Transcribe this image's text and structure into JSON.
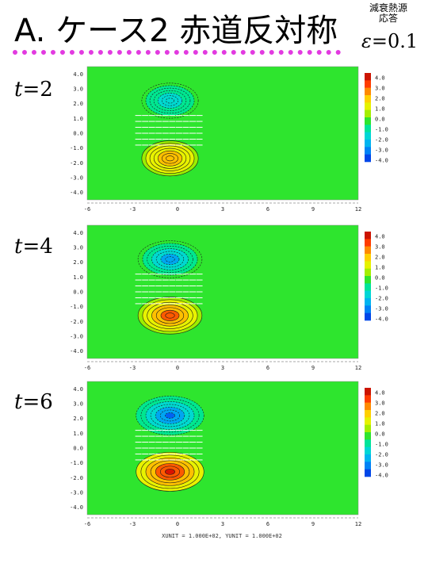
{
  "title": "A. ケース2 赤道反対称",
  "note_line1": "減衰熱源",
  "note_line2": "応答",
  "epsilon_symbol": "ε",
  "epsilon_eq": "=",
  "epsilon_value": "0.1",
  "footer": "XUNIT = 1.000E+02, YUNIT = 1.000E+02",
  "colors": {
    "background_field": "#2ee52e",
    "accent_line": "#e23ae0"
  },
  "chart_data": [
    {
      "type": "heatmap",
      "time_label_var": "t",
      "time_label_eq": "=",
      "time_label_value": "2",
      "xlim": [
        -6,
        12
      ],
      "ylim": [
        -4.5,
        4.5
      ],
      "x_ticks": [
        "-6",
        "-3",
        "0",
        "3",
        "6",
        "9",
        "12"
      ],
      "y_ticks": [
        "4.0",
        "3.0",
        "2.0",
        "1.0",
        "0.0",
        "-1.0",
        "-2.0",
        "-3.0",
        "-4.0"
      ],
      "colorbar_labels": [
        "4.0",
        "3.0",
        "2.0",
        "1.0",
        "0.0",
        "-1.0",
        "-2.0",
        "-3.0",
        "-4.0"
      ],
      "features": [
        {
          "x": -0.5,
          "y": 2.2,
          "sx": 1.5,
          "sy": 0.95,
          "amplitude": -2.6
        },
        {
          "x": -0.5,
          "y": -1.7,
          "sx": 1.5,
          "sy": 0.95,
          "amplitude": 2.6
        }
      ]
    },
    {
      "type": "heatmap",
      "time_label_var": "t",
      "time_label_eq": "=",
      "time_label_value": "4",
      "xlim": [
        -6,
        12
      ],
      "ylim": [
        -4.5,
        4.5
      ],
      "x_ticks": [
        "-6",
        "-3",
        "0",
        "3",
        "6",
        "9",
        "12"
      ],
      "y_ticks": [
        "4.0",
        "3.0",
        "2.0",
        "1.0",
        "0.0",
        "-1.0",
        "-2.0",
        "-3.0",
        "-4.0"
      ],
      "colorbar_labels": [
        "4.0",
        "3.0",
        "2.0",
        "1.0",
        "0.0",
        "-1.0",
        "-2.0",
        "-3.0",
        "-4.0"
      ],
      "features": [
        {
          "x": -0.5,
          "y": 2.2,
          "sx": 1.7,
          "sy": 1.0,
          "amplitude": -3.6
        },
        {
          "x": -0.5,
          "y": -1.6,
          "sx": 1.7,
          "sy": 1.0,
          "amplitude": 3.8
        }
      ]
    },
    {
      "type": "heatmap",
      "time_label_var": "t",
      "time_label_eq": "=",
      "time_label_value": "6",
      "xlim": [
        -6,
        12
      ],
      "ylim": [
        -4.5,
        4.5
      ],
      "x_ticks": [
        "-6",
        "-3",
        "0",
        "3",
        "6",
        "9",
        "12"
      ],
      "y_ticks": [
        "4.0",
        "3.0",
        "2.0",
        "1.0",
        "0.0",
        "-1.0",
        "-2.0",
        "-3.0",
        "-4.0"
      ],
      "colorbar_labels": [
        "4.0",
        "3.0",
        "2.0",
        "1.0",
        "0.0",
        "-1.0",
        "-2.0",
        "-3.0",
        "-4.0"
      ],
      "features": [
        {
          "x": -0.5,
          "y": 2.2,
          "sx": 1.8,
          "sy": 1.05,
          "amplitude": -4.0
        },
        {
          "x": -0.5,
          "y": -1.6,
          "sx": 1.8,
          "sy": 1.05,
          "amplitude": 4.1
        }
      ]
    }
  ]
}
